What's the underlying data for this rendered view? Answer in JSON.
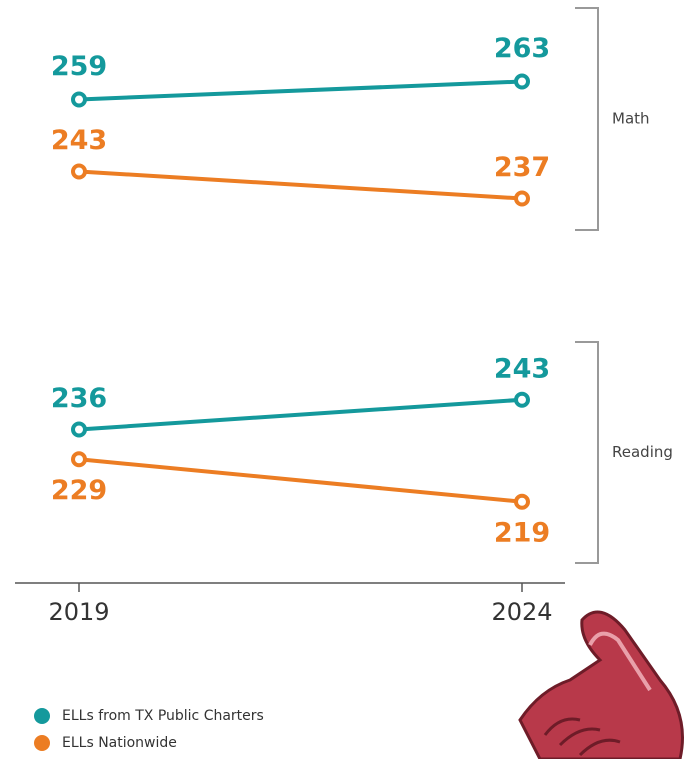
{
  "chart_data": {
    "type": "line",
    "categories": [
      "2019",
      "2024"
    ],
    "series": [
      {
        "name": "ELLs from TX Public Charters",
        "color": "#14999c"
      },
      {
        "name": "ELLs Nationwide",
        "color": "#ec7d23"
      }
    ],
    "panels": [
      {
        "label": "Math",
        "ylim": [
          230,
          270
        ],
        "values": [
          [
            259,
            263
          ],
          [
            243,
            237
          ]
        ]
      },
      {
        "label": "Reading",
        "ylim": [
          210,
          250
        ],
        "values": [
          [
            236,
            243
          ],
          [
            229,
            219
          ]
        ]
      }
    ]
  }
}
